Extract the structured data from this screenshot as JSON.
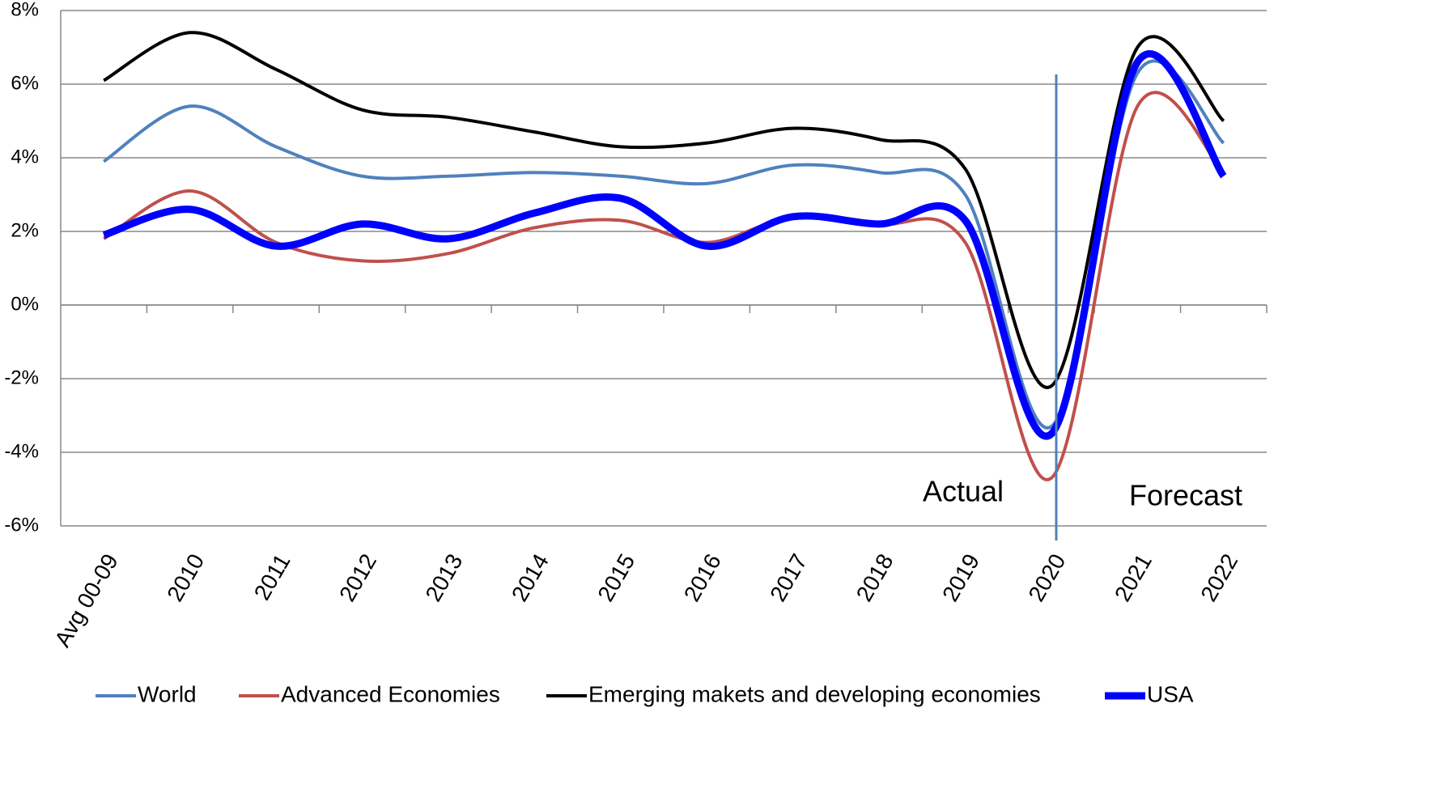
{
  "chart_data": {
    "type": "line",
    "categories": [
      "Avg 00-09",
      "2010",
      "2011",
      "2012",
      "2013",
      "2014",
      "2015",
      "2016",
      "2017",
      "2018",
      "2019",
      "2020",
      "2021",
      "2022"
    ],
    "series": [
      {
        "name": "World",
        "color": "#4f81bd",
        "values": [
          3.9,
          5.4,
          4.3,
          3.5,
          3.5,
          3.6,
          3.5,
          3.3,
          3.8,
          3.6,
          3.0,
          -3.3,
          6.3,
          4.4
        ]
      },
      {
        "name": "Advanced Economies",
        "color": "#c0504d",
        "values": [
          1.8,
          3.1,
          1.7,
          1.2,
          1.4,
          2.1,
          2.3,
          1.7,
          2.4,
          2.2,
          1.7,
          -4.7,
          5.4,
          3.6
        ]
      },
      {
        "name": "Emerging makets and developing economies",
        "color": "#000000",
        "values": [
          6.1,
          7.4,
          6.4,
          5.3,
          5.1,
          4.7,
          4.3,
          4.4,
          4.8,
          4.5,
          3.7,
          -2.2,
          7.0,
          5.0
        ]
      },
      {
        "name": "USA",
        "color": "#0000ff",
        "values": [
          1.9,
          2.6,
          1.6,
          2.2,
          1.8,
          2.5,
          2.9,
          1.6,
          2.4,
          2.2,
          2.3,
          -3.5,
          6.6,
          3.5
        ]
      }
    ],
    "ylim": [
      -6,
      8
    ],
    "yticks": [
      {
        "value": -6,
        "label": "-6%"
      },
      {
        "value": -4,
        "label": "-4%"
      },
      {
        "value": -2,
        "label": "-2%"
      },
      {
        "value": 0,
        "label": "0%"
      },
      {
        "value": 2,
        "label": "2%"
      },
      {
        "value": 4,
        "label": "4%"
      },
      {
        "value": 6,
        "label": "6%"
      },
      {
        "value": 8,
        "label": "8%"
      }
    ],
    "grid": true,
    "legend": "bottom",
    "annotations": [
      "Actual",
      "Forecast"
    ]
  }
}
